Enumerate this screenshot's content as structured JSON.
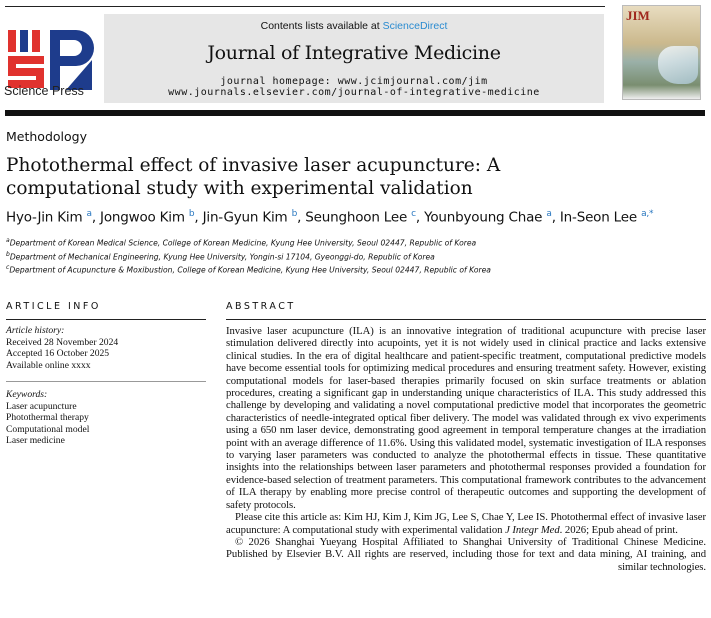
{
  "header": {
    "contents_prefix": "Contents lists available at ",
    "contents_link": "ScienceDirect",
    "journal_name": "Journal of Integrative Medicine",
    "homepage": "journal homepage: www.jcimjournal.com/jim",
    "elsevier_url": "www.journals.elsevier.com/journal-of-integrative-medicine",
    "publisher_logo_text": "Science Press",
    "cover_text": "JIM",
    "brand_red": "#e0322e",
    "brand_blue": "#1e3c8c",
    "link_color": "#2a8bd0"
  },
  "article": {
    "type": "Methodology",
    "title": "Photothermal effect of invasive laser acupuncture: A computational study with experimental validation",
    "authors": [
      {
        "name": "Hyo-Jin Kim",
        "aff": "a"
      },
      {
        "name": "Jongwoo Kim",
        "aff": "b"
      },
      {
        "name": "Jin-Gyun Kim",
        "aff": "b"
      },
      {
        "name": "Seunghoon Lee",
        "aff": "c"
      },
      {
        "name": "Younbyoung Chae",
        "aff": "a"
      },
      {
        "name": "In-Seon Lee",
        "aff": "a,*"
      }
    ],
    "affiliations": [
      {
        "key": "a",
        "text": "Department of Korean Medical Science, College of Korean Medicine, Kyung Hee University, Seoul 02447, Republic of Korea"
      },
      {
        "key": "b",
        "text": "Department of Mechanical Engineering, Kyung Hee University, Yongin-si 17104, Gyeonggi-do, Republic of Korea"
      },
      {
        "key": "c",
        "text": "Department of Acupuncture & Moxibustion, College of Korean Medicine, Kyung Hee University, Seoul 02447, Republic of Korea"
      }
    ]
  },
  "article_info": {
    "heading": "ARTICLE INFO",
    "history_label": "Article history:",
    "history": [
      "Received 28 November 2024",
      "Accepted 16 October 2025",
      "Available online xxxx"
    ],
    "keywords_label": "Keywords:",
    "keywords": [
      "Laser acupuncture",
      "Photothermal therapy",
      "Computational model",
      "Laser medicine"
    ]
  },
  "abstract": {
    "heading": "ABSTRACT",
    "body": "Invasive laser acupuncture (ILA) is an innovative integration of traditional acupuncture with precise laser stimulation delivered directly into acupoints, yet it is not widely used in clinical practice and lacks exten­sive clinical studies. In the era of digital healthcare and patient-specific treatment, computational predic­tive models have become essential tools for optimizing medical procedures and ensuring treatment safety. However, existing computational models for laser-based therapies primarily focused on skin sur­face treatments or ablation procedures, creating a significant gap in understanding unique characteristics of ILA. This study addressed this challenge by developing and validating a novel computational predictive model that incorporates the geometric characteristics of needle-integrated optical fiber delivery. The model was validated through ex vivo experiments using a 650 nm laser device, demonstrating good agreement in temporal temperature changes at the irradiation point with an average difference of 11.6%. Using this validated model, systematic investigation of ILA responses to varying laser parameters was conducted to analyze the photothermal effects in tissue. These quantitative insights into the relation­ships between laser parameters and photothermal responses provided a foundation for evidence-based selection of treatment parameters. This computational framework contributes to the advancement of ILA therapy by enabling more precise control of therapeutic outcomes and supporting the development of safety protocols.",
    "cite_prefix": "Please cite this article as: Kim HJ, Kim J, Kim JG, Lee S, Chae Y, Lee IS. Photothermal effect of invasive laser acupuncture: A computational study with experimental validation ",
    "cite_journal": "J Integr Med",
    "cite_suffix": ". 2026; Epub ahead of print.",
    "copyright_1": "© 2026 Shanghai Yueyang Hospital Affiliated to Shanghai University of Traditional Chinese Medicine. Published by Elsevier B.V. All rights are reserved, including those for text and data mining, AI training, and",
    "copyright_2": "similar technologies."
  }
}
